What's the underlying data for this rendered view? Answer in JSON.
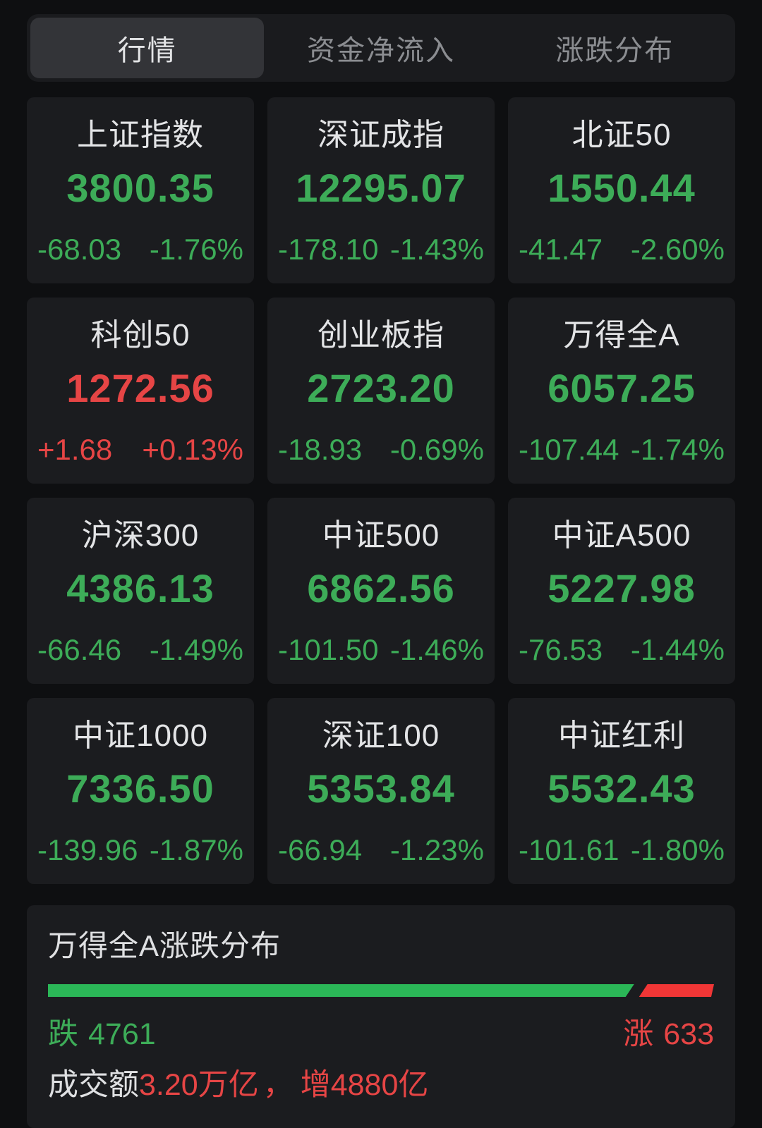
{
  "tabs": [
    {
      "label": "行情",
      "active": true
    },
    {
      "label": "资金净流入",
      "active": false
    },
    {
      "label": "涨跌分布",
      "active": false
    }
  ],
  "indices": [
    {
      "name": "上证指数",
      "value": "3800.35",
      "change": "-68.03",
      "change_pct": "-1.76%",
      "direction": "down"
    },
    {
      "name": "深证成指",
      "value": "12295.07",
      "change": "-178.10",
      "change_pct": "-1.43%",
      "direction": "down"
    },
    {
      "name": "北证50",
      "value": "1550.44",
      "change": "-41.47",
      "change_pct": "-2.60%",
      "direction": "down"
    },
    {
      "name": "科创50",
      "value": "1272.56",
      "change": "+1.68",
      "change_pct": "+0.13%",
      "direction": "up"
    },
    {
      "name": "创业板指",
      "value": "2723.20",
      "change": "-18.93",
      "change_pct": "-0.69%",
      "direction": "down"
    },
    {
      "name": "万得全A",
      "value": "6057.25",
      "change": "-107.44",
      "change_pct": "-1.74%",
      "direction": "down"
    },
    {
      "name": "沪深300",
      "value": "4386.13",
      "change": "-66.46",
      "change_pct": "-1.49%",
      "direction": "down"
    },
    {
      "name": "中证500",
      "value": "6862.56",
      "change": "-101.50",
      "change_pct": "-1.46%",
      "direction": "down"
    },
    {
      "name": "中证A500",
      "value": "5227.98",
      "change": "-76.53",
      "change_pct": "-1.44%",
      "direction": "down"
    },
    {
      "name": "中证1000",
      "value": "7336.50",
      "change": "-139.96",
      "change_pct": "-1.87%",
      "direction": "down"
    },
    {
      "name": "深证100",
      "value": "5353.84",
      "change": "-66.94",
      "change_pct": "-1.23%",
      "direction": "down"
    },
    {
      "name": "中证红利",
      "value": "5532.43",
      "change": "-101.61",
      "change_pct": "-1.80%",
      "direction": "down"
    }
  ],
  "distribution": {
    "title": "万得全A涨跌分布",
    "down_label": "跌",
    "down_count": "4761",
    "up_label": "涨",
    "up_count": "633",
    "bar": {
      "down_width_pct": 88
    },
    "turnover_label": "成交额",
    "turnover_value": "3.20万亿",
    "comma": "，",
    "turnover_change": "增4880亿"
  },
  "colors": {
    "up_red_text": "#e64545",
    "down_green_text": "#3dac58",
    "bar_green": "#2bb757",
    "bar_red": "#f13636",
    "card_bg": "#1b1c1f",
    "page_bg": "#0e0f11"
  }
}
